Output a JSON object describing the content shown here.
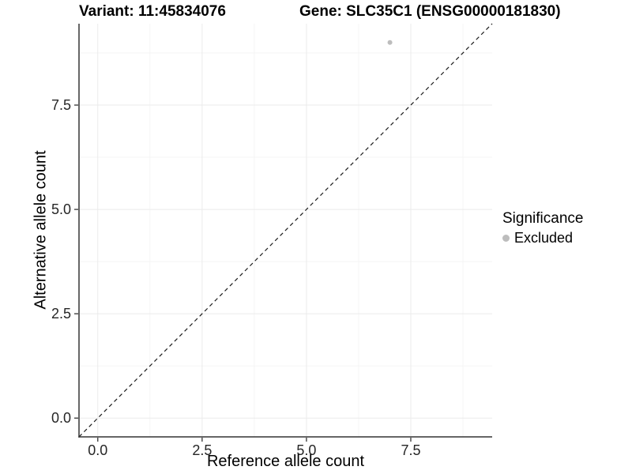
{
  "title": {
    "variant": "Variant: 11:45834076",
    "gene": "Gene: SLC35C1 (ENSG00000181830)"
  },
  "chart_data": {
    "type": "scatter",
    "xlabel": "Reference allele count",
    "ylabel": "Alternative allele count",
    "xlim": [
      -0.45,
      9.45
    ],
    "ylim": [
      -0.45,
      9.45
    ],
    "x_ticks": [
      0,
      2.5,
      5,
      7.5
    ],
    "x_tick_labels": [
      "0.0",
      "2.5",
      "5.0",
      "7.5"
    ],
    "y_ticks": [
      0,
      2.5,
      5,
      7.5
    ],
    "y_tick_labels": [
      "0.0",
      "2.5",
      "5.0",
      "7.5"
    ],
    "x_minor_ticks": [
      1.25,
      3.75,
      6.25,
      8.75
    ],
    "y_minor_ticks": [
      1.25,
      3.75,
      6.25,
      8.75
    ],
    "grid": true,
    "points": [
      {
        "x": 7,
        "y": 9,
        "significance": "Excluded"
      }
    ],
    "reference_line": {
      "slope": 1,
      "intercept": 0,
      "linetype": "dashed"
    },
    "legend": {
      "title": "Significance",
      "position": "right",
      "items": [
        {
          "label": "Excluded",
          "color": "#bdbdbd"
        }
      ]
    }
  },
  "colors": {
    "point": "#bdbdbd",
    "grid_major": "#ebebeb",
    "grid_minor": "#f5f5f5",
    "axis_line": "#333333",
    "tick_label": "#262626",
    "dashed_line": "#1a1a1a"
  }
}
